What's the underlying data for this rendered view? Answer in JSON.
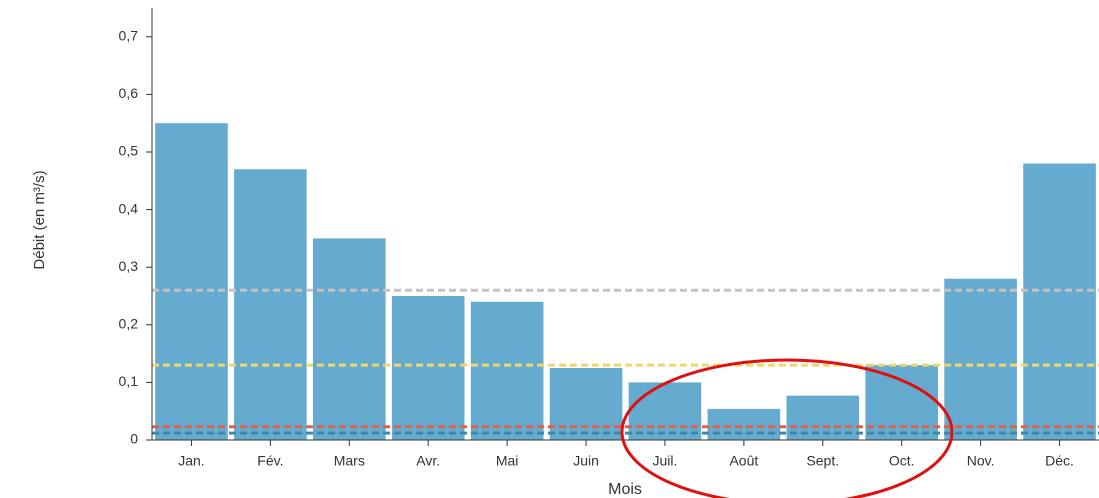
{
  "chart_data": {
    "type": "bar",
    "y_label": "Débit (en m³/s)",
    "x_label": "Mois",
    "categories": [
      "Jan.",
      "Fév.",
      "Mars",
      "Avr.",
      "Mai",
      "Juin",
      "Juil.",
      "Août",
      "Sept.",
      "Oct.",
      "Nov.",
      "Déc."
    ],
    "values": [
      0.55,
      0.47,
      0.35,
      0.25,
      0.24,
      0.125,
      0.1,
      0.054,
      0.077,
      0.13,
      0.28,
      0.48
    ],
    "color": "#64abcf",
    "ylim": [
      0,
      0.75
    ],
    "yticks": [
      0,
      {
        "value": 0.1,
        "label": "0,1"
      },
      {
        "value": 0.2,
        "label": "0,2"
      },
      {
        "value": 0.3,
        "label": "0,3"
      },
      {
        "value": 0.4,
        "label": "0,4"
      },
      {
        "value": 0.5,
        "label": "0,5"
      },
      {
        "value": 0.6,
        "label": "0,6"
      },
      {
        "value": 0.7,
        "label": "0,7"
      }
    ],
    "reference_lines": [
      {
        "value": 0.26,
        "color": "#c9c0c4"
      },
      {
        "value": 0.13,
        "color": "#f2d56a"
      },
      {
        "value": 0.023,
        "color": "#e0604a"
      },
      {
        "value": 0.012,
        "color": "#3d8aa8"
      }
    ]
  }
}
